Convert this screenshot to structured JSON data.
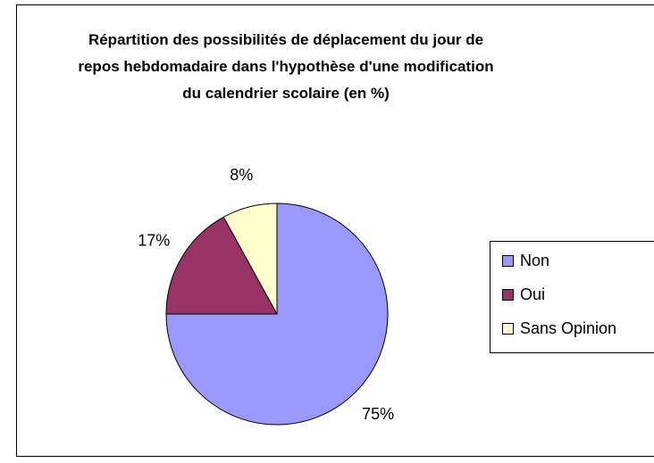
{
  "chart_data": {
    "type": "pie",
    "title": "Répartition des possibilités de déplacement du jour de repos hebdomadaire dans l'hypothèse d'une modification du calendrier scolaire (en %)",
    "categories": [
      "Non",
      "Oui",
      "Sans Opinion"
    ],
    "values": [
      75,
      17,
      8
    ],
    "value_labels": [
      "75%",
      "17%",
      "8%"
    ],
    "colors": [
      "#9999ff",
      "#993366",
      "#ffffcc"
    ],
    "legend": "right"
  }
}
